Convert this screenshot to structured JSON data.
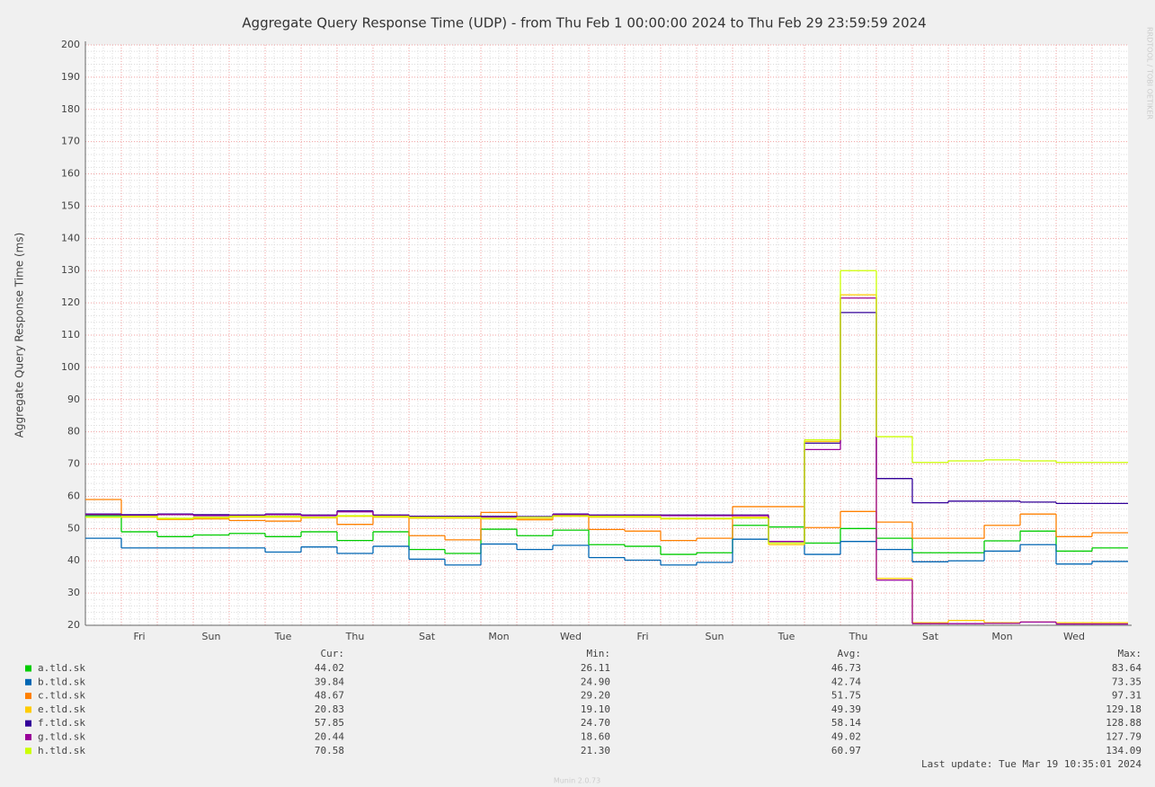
{
  "chart_data": {
    "type": "step-line",
    "title": "Aggregate Query Response Time (UDP) - from Thu Feb  1 00:00:00 2024 to Thu Feb 29 23:59:59 2024",
    "y_label": "Aggregate Query Response Time (ms)",
    "watermark": "RRDTOOL / TOBI OETIKER",
    "categories": [
      null,
      "Fri",
      null,
      "Sun",
      null,
      "Tue",
      null,
      "Thu",
      null,
      "Sat",
      null,
      "Mon",
      null,
      "Wed",
      null,
      "Fri",
      null,
      "Sun",
      null,
      "Tue",
      null,
      "Thu",
      null,
      "Sat",
      null,
      "Mon",
      null,
      "Wed",
      null
    ],
    "ylim": [
      20,
      200
    ],
    "yticks": [
      20,
      30,
      40,
      50,
      60,
      70,
      80,
      90,
      100,
      110,
      120,
      130,
      140,
      150,
      160,
      170,
      180,
      190,
      200
    ],
    "grid": true,
    "series": [
      {
        "name": "a.tld.sk",
        "color": "#00cc00",
        "values": [
          54,
          49,
          47.5,
          48,
          48.5,
          47.5,
          49,
          46.3,
          49,
          43.5,
          42.3,
          49.8,
          47.8,
          49.5,
          45,
          44.5,
          42,
          42.5,
          51,
          50.5,
          45.5,
          50,
          47,
          42.5,
          42.5,
          46.2,
          49.2,
          43,
          44
        ]
      },
      {
        "name": "b.tld.sk",
        "color": "#0066b3",
        "values": [
          47,
          44,
          44,
          44,
          44,
          42.7,
          44.3,
          42.3,
          44.5,
          40.5,
          38.7,
          45.2,
          43.5,
          44.8,
          41,
          40.2,
          38.7,
          39.5,
          46.7,
          46,
          42,
          46,
          43.5,
          39.7,
          40,
          43,
          45,
          39,
          39.8
        ]
      },
      {
        "name": "c.tld.sk",
        "color": "#ff8000",
        "values": [
          59,
          54,
          52.8,
          53,
          52.5,
          52.3,
          53.5,
          51.3,
          53.8,
          47.8,
          46.5,
          55,
          52.7,
          54,
          49.7,
          49.2,
          46.3,
          47,
          56.8,
          56.8,
          50.3,
          55.3,
          52,
          47,
          47,
          51,
          54.5,
          47.5,
          48.7
        ]
      },
      {
        "name": "e.tld.sk",
        "color": "#ffcc00",
        "values": [
          53.5,
          53.5,
          53,
          53.2,
          53.5,
          53.5,
          53.3,
          53.8,
          53.5,
          53.2,
          53.2,
          53,
          53,
          53.8,
          53.5,
          53.5,
          53,
          53,
          53.5,
          45,
          77,
          122.5,
          34.5,
          20.8,
          21.5,
          20.8,
          21,
          20.8,
          20.8
        ]
      },
      {
        "name": "f.tld.sk",
        "color": "#330099",
        "values": [
          54.5,
          54.3,
          54.5,
          54.3,
          54.2,
          54.5,
          54.2,
          55.5,
          54.2,
          53.8,
          53.8,
          53.8,
          53.7,
          54.5,
          54.2,
          54.2,
          54.2,
          54.2,
          54.2,
          46,
          76.5,
          117,
          65.5,
          58,
          58.5,
          58.5,
          58.2,
          57.8,
          57.8
        ]
      },
      {
        "name": "g.tld.sk",
        "color": "#990099",
        "values": [
          54.3,
          54,
          54.3,
          54,
          54,
          54.3,
          54,
          55.2,
          54,
          53.6,
          53.6,
          53.6,
          53.5,
          54.3,
          54,
          54,
          54,
          54,
          54,
          46,
          74.5,
          121.5,
          34,
          20.5,
          20.5,
          20.6,
          21,
          20.4,
          20.4
        ]
      },
      {
        "name": "h.tld.sk",
        "color": "#ccff00",
        "values": [
          53.5,
          53.8,
          53.2,
          53.5,
          53.8,
          53.8,
          53.5,
          54,
          53.8,
          53.5,
          53.5,
          53.2,
          53.5,
          54,
          53.8,
          53.8,
          53.2,
          53.2,
          53.2,
          45.5,
          77.5,
          130,
          78.5,
          70.5,
          71,
          71.3,
          71,
          70.5,
          70.5
        ]
      }
    ],
    "legend_stats": {
      "headers": [
        "Cur:",
        "Min:",
        "Avg:",
        "Max:"
      ],
      "rows": [
        [
          "44.02",
          "26.11",
          "46.73",
          "83.64"
        ],
        [
          "39.84",
          "24.90",
          "42.74",
          "73.35"
        ],
        [
          "48.67",
          "29.20",
          "51.75",
          "97.31"
        ],
        [
          "20.83",
          "19.10",
          "49.39",
          "129.18"
        ],
        [
          "57.85",
          "24.70",
          "58.14",
          "128.88"
        ],
        [
          "20.44",
          "18.60",
          "49.02",
          "127.79"
        ],
        [
          "70.58",
          "21.30",
          "60.97",
          "134.09"
        ]
      ]
    },
    "last_update": "Last update: Tue Mar 19 10:35:01 2024",
    "footer": "Munin 2.0.73"
  }
}
